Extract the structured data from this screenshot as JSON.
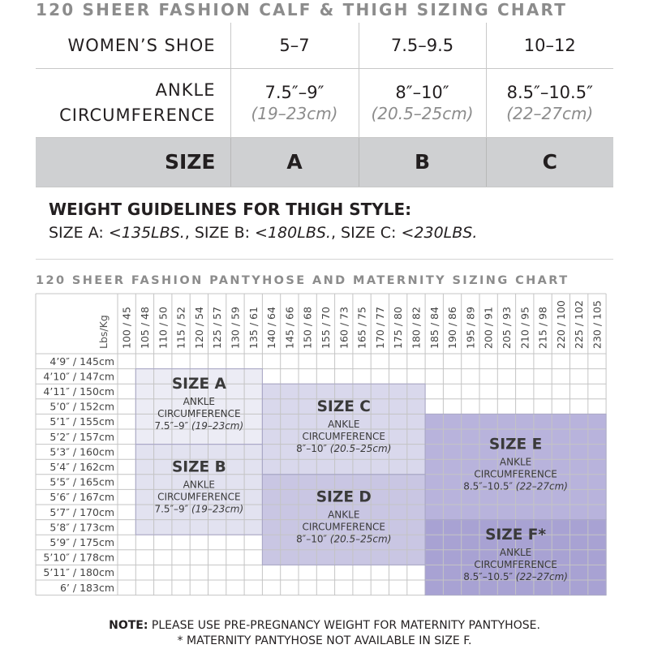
{
  "calf_chart": {
    "title": "120 SHEER FASHION CALF & THIGH SIZING CHART",
    "rows": [
      {
        "label": "WOMEN’S SHOE",
        "values": [
          "5–7",
          "7.5–9.5",
          "10–12"
        ]
      },
      {
        "label_lines": [
          "ANKLE",
          "CIRCUMFERENCE"
        ],
        "values": [
          "7.5″–9″",
          "8″–10″",
          "8.5″–10.5″"
        ],
        "cm_values": [
          "(19–23cm)",
          "(20.5–25cm)",
          "(22–27cm)"
        ]
      },
      {
        "label": "SIZE",
        "values": [
          "A",
          "B",
          "C"
        ]
      }
    ]
  },
  "weight_guidelines": {
    "title": "WEIGHT GUIDELINES FOR THIGH STYLE:",
    "items": [
      {
        "size": "SIZE A: ",
        "limit": "<135LBS."
      },
      {
        "size": "SIZE B: ",
        "limit": "<180LBS."
      },
      {
        "size": "SIZE C: ",
        "limit": "<230LBS."
      }
    ],
    "separator": ", "
  },
  "chart_data": {
    "type": "heatmap",
    "title": "120 SHEER FASHION PANTYHOSE AND MATERNITY SIZING CHART",
    "corner_label": "Lbs/Kg",
    "x": [
      "100 / 45",
      "105 / 48",
      "110 / 50",
      "115 / 52",
      "120 / 54",
      "125 / 57",
      "130 / 59",
      "135 / 61",
      "140 / 64",
      "145 / 66",
      "150 / 68",
      "155 / 70",
      "160 / 73",
      "165 / 75",
      "170 / 77",
      "175 / 80",
      "180 / 82",
      "185 / 84",
      "190 / 86",
      "195 / 89",
      "200 / 91",
      "205 / 93",
      "210 / 95",
      "215 / 98",
      "220 / 100",
      "225 / 102",
      "230 / 105"
    ],
    "y": [
      "4’9″ / 145cm",
      "4’10″ / 147cm",
      "4’11″ / 150cm",
      "5’0″ / 152cm",
      "5’1″ / 155cm",
      "5’2″ / 157cm",
      "5’3″ / 160cm",
      "5’4″ / 162cm",
      "5’5″ / 165cm",
      "5’6″ / 167cm",
      "5’7″ / 170cm",
      "5’8″ / 173cm",
      "5’9″ / 175cm",
      "5’10″ / 178cm",
      "5’11″ / 180cm",
      "6’ / 183cm"
    ],
    "regions": [
      {
        "name": "SIZE A",
        "ankle_label": "ANKLE CIRCUMFERENCE",
        "ankle": "7.5″–9″",
        "cm": "(19–23cm)",
        "weight": [
          "105 / 48",
          "135 / 61"
        ],
        "height": [
          "4’10″ / 147cm",
          "5’2″ / 157cm"
        ],
        "color": "#ececf5"
      },
      {
        "name": "SIZE B",
        "ankle_label": "ANKLE CIRCUMFERENCE",
        "ankle": "7.5″–9″",
        "cm": "(19–23cm)",
        "weight": [
          "105 / 48",
          "135 / 61"
        ],
        "height": [
          "5’3″ / 160cm",
          "5’8″ / 173cm"
        ],
        "color": "#e2e2f0"
      },
      {
        "name": "SIZE C",
        "ankle_label": "ANKLE CIRCUMFERENCE",
        "ankle": "8″–10″",
        "cm": "(20.5–25cm)",
        "weight": [
          "140 / 64",
          "180 / 82"
        ],
        "height": [
          "4’11″ / 150cm",
          "5’4″ / 162cm"
        ],
        "color": "#d9d8ec"
      },
      {
        "name": "SIZE D",
        "ankle_label": "ANKLE CIRCUMFERENCE",
        "ankle": "8″–10″",
        "cm": "(20.5–25cm)",
        "weight": [
          "140 / 64",
          "180 / 82"
        ],
        "height": [
          "5’5″ / 165cm",
          "5’10″ / 178cm"
        ],
        "color": "#c9c6e3"
      },
      {
        "name": "SIZE E",
        "ankle_label": "ANKLE CIRCUMFERENCE",
        "ankle": "8.5″–10.5″",
        "cm": "(22–27cm)",
        "weight": [
          "185 / 84",
          "230 / 105"
        ],
        "height": [
          "5’1″ / 155cm",
          "5’7″ / 170cm"
        ],
        "color": "#b8b3dc"
      },
      {
        "name": "SIZE F*",
        "ankle_label": "ANKLE CIRCUMFERENCE",
        "ankle": "8.5″–10.5″",
        "cm": "(22–27cm)",
        "weight": [
          "185 / 84",
          "230 / 105"
        ],
        "height": [
          "5’8″ / 173cm",
          "6’ / 183cm"
        ],
        "color": "#a8a2d3"
      }
    ]
  },
  "note": {
    "bold": "NOTE:",
    "line1": " PLEASE USE PRE-PREGNANCY WEIGHT FOR MATERNITY PANTYHOSE.",
    "line2": "* MATERNITY PANTYHOSE NOT AVAILABLE IN SIZE F."
  }
}
